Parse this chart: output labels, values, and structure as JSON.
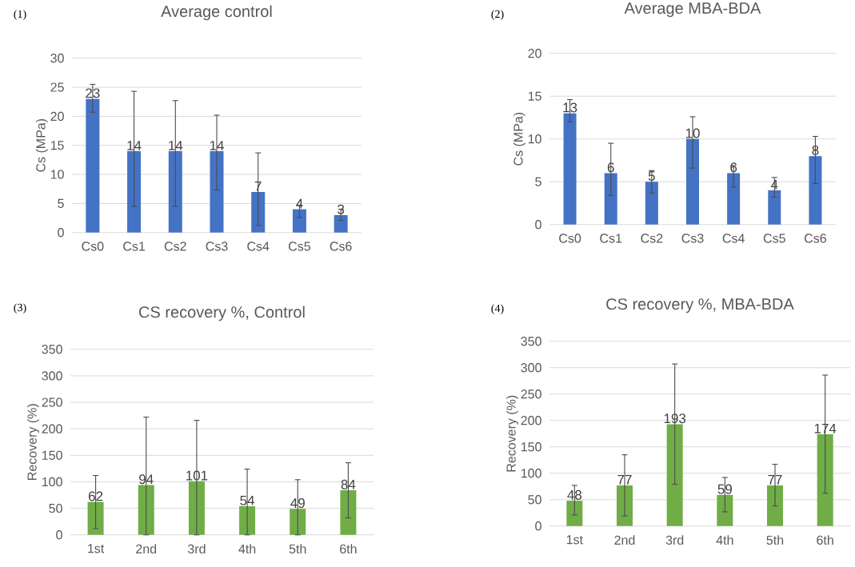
{
  "chart_data": [
    {
      "type": "bar",
      "title": "Average control",
      "ylabel": "Cs (MPa)",
      "annotations": [
        "(1)"
      ],
      "categories": [
        "Cs0",
        "Cs1",
        "Cs2",
        "Cs3",
        "Cs4",
        "Cs5",
        "Cs6"
      ],
      "values": [
        23,
        14,
        14,
        14,
        7,
        4,
        3
      ],
      "errors": [
        [
          20.7,
          25.5
        ],
        [
          4.5,
          24.3
        ],
        [
          4.5,
          22.7
        ],
        [
          7.3,
          20.2
        ],
        [
          1.2,
          13.7
        ],
        [
          2.6,
          4.7
        ],
        [
          2.1,
          4.0
        ]
      ],
      "color": "#4472c4",
      "ylim": [
        0,
        30
      ],
      "yticks": [
        0,
        5,
        10,
        15,
        20,
        25,
        30
      ],
      "grid": "y",
      "data_labels": true
    },
    {
      "type": "bar",
      "title": "Average MBA-BDA",
      "ylabel": "Cs (MPa)",
      "annotations": [
        "(2)"
      ],
      "categories": [
        "Cs0",
        "Cs1",
        "Cs2",
        "Cs3",
        "Cs4",
        "Cs5",
        "Cs6"
      ],
      "values": [
        13,
        6,
        5,
        10,
        6,
        4,
        8
      ],
      "errors": [
        [
          12,
          14.6
        ],
        [
          3.4,
          9.5
        ],
        [
          3.7,
          6.3
        ],
        [
          6.6,
          12.6
        ],
        [
          4.4,
          6.9
        ],
        [
          3.2,
          5.5
        ],
        [
          4.8,
          10.3
        ]
      ],
      "color": "#4472c4",
      "ylim": [
        0,
        20
      ],
      "yticks": [
        0,
        5,
        10,
        15,
        20
      ],
      "grid": "y",
      "data_labels": true
    },
    {
      "type": "bar",
      "title": "CS recovery %, Control",
      "ylabel": "Recovery (%)",
      "annotations": [
        "(3)"
      ],
      "categories": [
        "1st",
        "2nd",
        "3rd",
        "4th",
        "5th",
        "6th"
      ],
      "values": [
        62,
        94,
        101,
        54,
        49,
        84
      ],
      "errors": [
        [
          12,
          112
        ],
        [
          0,
          222
        ],
        [
          0,
          216
        ],
        [
          0,
          124
        ],
        [
          0,
          104
        ],
        [
          32,
          136
        ]
      ],
      "color": "#70ad47",
      "ylim": [
        0,
        350
      ],
      "yticks": [
        0,
        50,
        100,
        150,
        200,
        250,
        300,
        350
      ],
      "grid": "y",
      "data_labels": true
    },
    {
      "type": "bar",
      "title": "CS recovery %, MBA-BDA",
      "ylabel": "Recovery (%)",
      "annotations": [
        "(4)"
      ],
      "categories": [
        "1st",
        "2nd",
        "3rd",
        "4th",
        "5th",
        "6th"
      ],
      "values": [
        48,
        77,
        193,
        59,
        77,
        174
      ],
      "errors": [
        [
          21,
          77
        ],
        [
          19,
          135
        ],
        [
          79,
          307
        ],
        [
          27,
          92
        ],
        [
          38,
          117
        ],
        [
          62,
          286
        ]
      ],
      "color": "#70ad47",
      "ylim": [
        0,
        350
      ],
      "yticks": [
        0,
        50,
        100,
        150,
        200,
        250,
        300,
        350
      ],
      "grid": "y",
      "data_labels": true
    }
  ]
}
